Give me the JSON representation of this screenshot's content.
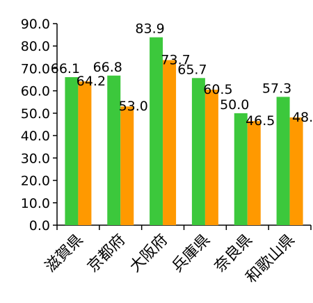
{
  "chart_data": {
    "type": "bar",
    "title": "",
    "xlabel": "",
    "ylabel": "",
    "categories": [
      "滋賀県",
      "京都府",
      "大阪府",
      "兵庫県",
      "奈良県",
      "和歌山県"
    ],
    "series": [
      {
        "color": "#3CC83C",
        "values": [
          66.1,
          66.8,
          83.9,
          65.7,
          50.0,
          57.3
        ],
        "labels": [
          "66.1",
          "66.8",
          "83.9",
          "65.7",
          "50.0",
          "57.3"
        ]
      },
      {
        "color": "#FF9900",
        "values": [
          64.2,
          53.0,
          73.7,
          60.5,
          46.5,
          48.1
        ],
        "labels": [
          "64.2",
          "53.0",
          "73.7",
          "60.5",
          "46.5",
          "48."
        ]
      }
    ],
    "ylim": [
      0,
      90
    ],
    "yticks": [
      "0.0",
      "10.0",
      "20.0",
      "30.0",
      "40.0",
      "50.0",
      "60.0",
      "70.0",
      "80.0",
      "90.0"
    ],
    "grid": false,
    "legend": "none"
  }
}
